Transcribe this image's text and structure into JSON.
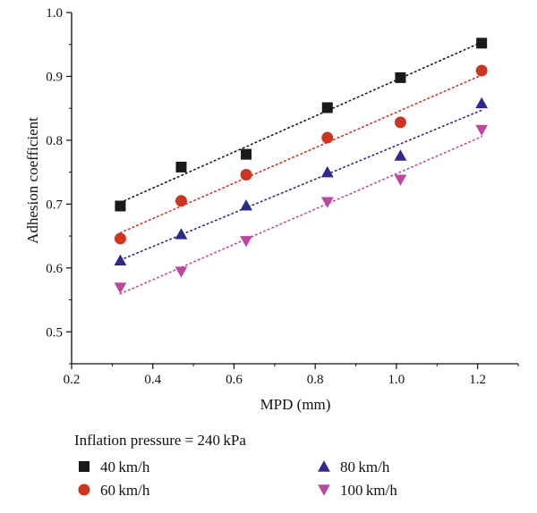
{
  "chart_data": {
    "type": "scatter",
    "xlabel": "MPD (mm)",
    "ylabel": "Adhesion coefficient",
    "xlim": [
      0.2,
      1.3
    ],
    "ylim": [
      0.45,
      1.0
    ],
    "xticks": [
      "0.2",
      "0.4",
      "0.6",
      "0.8",
      "1.0",
      "1.2"
    ],
    "yticks": [
      "0.5",
      "0.6",
      "0.7",
      "0.8",
      "0.9",
      "1.0"
    ],
    "grid": false,
    "legend_title": "Inflation pressure = 240 kPa",
    "legend_position": "bottom",
    "series": [
      {
        "name": "40 km/h",
        "marker": "square",
        "color": "#1a1a1a",
        "x": [
          0.32,
          0.47,
          0.63,
          0.83,
          1.01,
          1.21
        ],
        "y": [
          0.697,
          0.758,
          0.778,
          0.851,
          0.898,
          0.952
        ],
        "trendline": true
      },
      {
        "name": "60 km/h",
        "marker": "circle",
        "color": "#cc3522",
        "x": [
          0.32,
          0.47,
          0.63,
          0.83,
          1.01,
          1.21
        ],
        "y": [
          0.646,
          0.705,
          0.746,
          0.804,
          0.828,
          0.909
        ],
        "trendline": true
      },
      {
        "name": "80 km/h",
        "marker": "triangle-up",
        "color": "#2e2a8c",
        "x": [
          0.32,
          0.47,
          0.63,
          0.83,
          1.01,
          1.21
        ],
        "y": [
          0.612,
          0.653,
          0.698,
          0.75,
          0.776,
          0.858
        ],
        "trendline": true
      },
      {
        "name": "100 km/h",
        "marker": "triangle-down",
        "color": "#bb4a9f",
        "x": [
          0.32,
          0.47,
          0.63,
          0.83,
          1.01,
          1.21
        ],
        "y": [
          0.569,
          0.594,
          0.642,
          0.703,
          0.738,
          0.816
        ],
        "trendline": true
      }
    ]
  }
}
